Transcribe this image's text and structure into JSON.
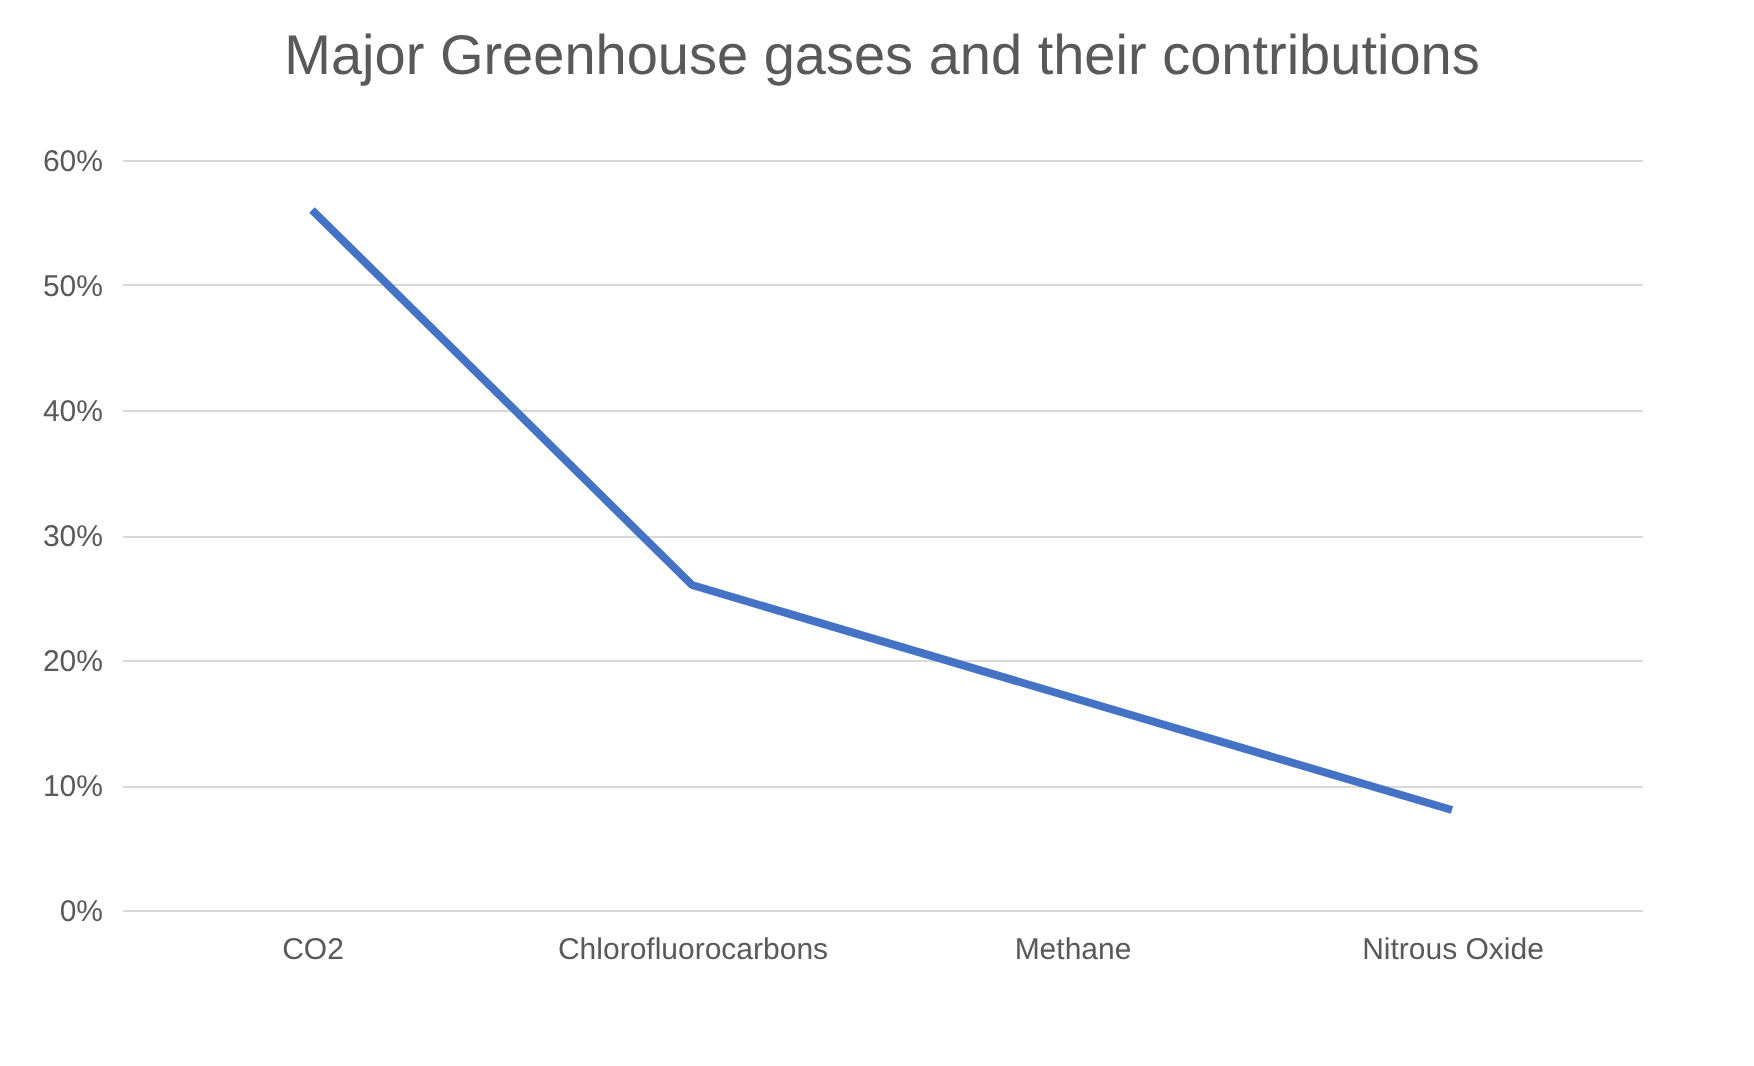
{
  "chart_data": {
    "type": "line",
    "title": "Major Greenhouse gases and their contributions",
    "categories": [
      "CO2",
      "Chlorofluorocarbons",
      "Methane",
      "Nitrous Oxide"
    ],
    "series": [
      {
        "color": "#4472c4",
        "values": [
          56,
          26,
          17,
          8
        ]
      }
    ],
    "ylim": [
      0,
      60
    ],
    "yticks": [
      {
        "value": 0,
        "label": "0%"
      },
      {
        "value": 10,
        "label": "10%"
      },
      {
        "value": 20,
        "label": "20%"
      },
      {
        "value": 30,
        "label": "30%"
      },
      {
        "value": 40,
        "label": "40%"
      },
      {
        "value": 50,
        "label": "50%"
      },
      {
        "value": 60,
        "label": "60%"
      }
    ],
    "grid": "y",
    "marker": "none",
    "line_style": "solid"
  }
}
